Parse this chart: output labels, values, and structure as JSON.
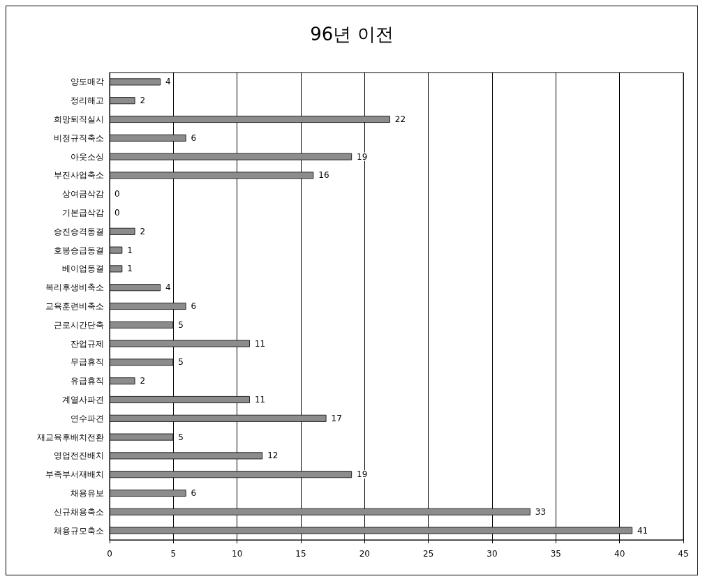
{
  "chart_data": {
    "type": "bar",
    "title": "96년 이전",
    "orientation": "horizontal",
    "categories": [
      "양도매각",
      "정리해고",
      "희망퇴직실시",
      "비정규직축소",
      "아웃소싱",
      "부진사업축소",
      "상여금삭감",
      "기본급삭감",
      "승진승격동결",
      "호봉승급동결",
      "베이업동결",
      "복리후생비축소",
      "교육훈련비축소",
      "근로시간단축",
      "잔업규제",
      "무급휴직",
      "유급휴직",
      "계열사파견",
      "연수파견",
      "재교육후배치전환",
      "영업전진배치",
      "부족부서재배치",
      "채용유보",
      "신규채용축소",
      "채용규모축소"
    ],
    "values": [
      4,
      2,
      22,
      6,
      19,
      16,
      0,
      0,
      2,
      1,
      1,
      4,
      6,
      5,
      11,
      5,
      2,
      11,
      17,
      5,
      12,
      19,
      6,
      33,
      41
    ],
    "color": "#8c8c8c",
    "xlim": [
      0,
      45
    ],
    "xticks": [
      0,
      5,
      10,
      15,
      20,
      25,
      30,
      35,
      40,
      45
    ],
    "grid": "x",
    "data_labels": true
  }
}
